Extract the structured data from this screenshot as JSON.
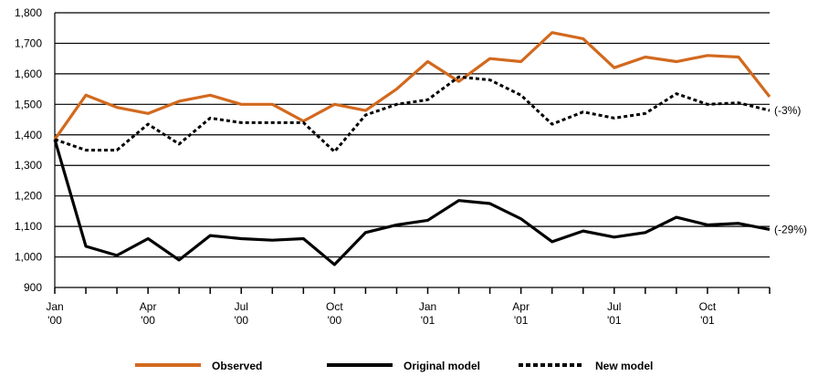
{
  "chart_data": {
    "type": "line",
    "categories": [
      [
        "Jan",
        "'00"
      ],
      null,
      null,
      [
        "Apr",
        "'00"
      ],
      null,
      null,
      [
        "Jul",
        "'00"
      ],
      null,
      null,
      [
        "Oct",
        "'00"
      ],
      null,
      null,
      [
        "Jan",
        "'01"
      ],
      null,
      null,
      [
        "Apr",
        "'01"
      ],
      null,
      null,
      [
        "Jul",
        "'01"
      ],
      null,
      null,
      [
        "Oct",
        "'01"
      ],
      null,
      null
    ],
    "series": [
      {
        "name": "Observed",
        "color": "#d2691e",
        "style": "solid",
        "values": [
          1385,
          1530,
          1490,
          1470,
          1510,
          1530,
          1500,
          1500,
          1445,
          1500,
          1480,
          1550,
          1640,
          1575,
          1650,
          1640,
          1735,
          1715,
          1620,
          1655,
          1640,
          1660,
          1655,
          1525
        ]
      },
      {
        "name": "Original model",
        "color": "#000000",
        "style": "solid",
        "values": [
          1385,
          1035,
          1005,
          1060,
          990,
          1070,
          1060,
          1055,
          1060,
          975,
          1080,
          1105,
          1120,
          1185,
          1175,
          1125,
          1050,
          1085,
          1065,
          1080,
          1130,
          1105,
          1110,
          1090
        ]
      },
      {
        "name": "New model",
        "color": "#000000",
        "style": "dotted",
        "values": [
          1385,
          1350,
          1350,
          1435,
          1370,
          1455,
          1440,
          1440,
          1440,
          1345,
          1465,
          1500,
          1515,
          1590,
          1580,
          1530,
          1435,
          1475,
          1455,
          1470,
          1535,
          1500,
          1505,
          1480
        ]
      }
    ],
    "annotations": [
      "(-3%)",
      "(-29%)"
    ],
    "ylim": [
      900,
      1800
    ],
    "yticks": [
      900,
      {
        "value": 1000,
        "label": "1,000"
      },
      {
        "value": 1100,
        "label": "1,100"
      },
      {
        "value": 1200,
        "label": "1,200"
      },
      {
        "value": 1300,
        "label": "1,300"
      },
      {
        "value": 1400,
        "label": "1,400"
      },
      {
        "value": 1500,
        "label": "1,500"
      },
      {
        "value": 1600,
        "label": "1,600"
      },
      {
        "value": 1700,
        "label": "1,700"
      },
      {
        "value": 1800,
        "label": "1,800"
      }
    ],
    "grid": true
  }
}
